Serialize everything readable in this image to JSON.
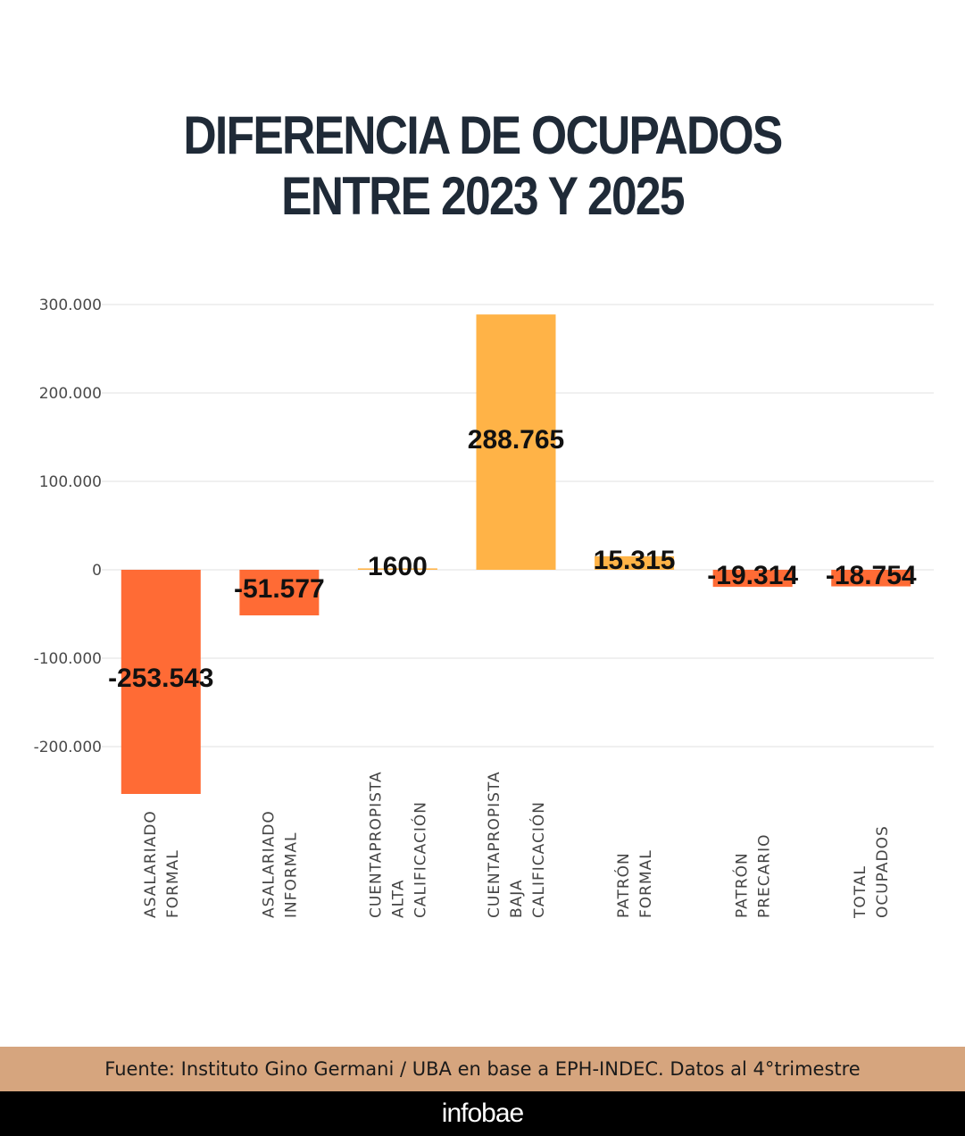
{
  "title_lines": [
    "DIFERENCIA DE OCUPADOS",
    "ENTRE 2023 Y 2025"
  ],
  "source": "Fuente: Instituto Gino Germani / UBA en base a EPH-INDEC. Datos al 4°trimestre",
  "brand": "infobae",
  "colors": {
    "negative": "#ff6b35",
    "positive": "#ffb347",
    "grid": "#e6e6e6",
    "title": "#1f2a37",
    "source_bg": "#d6a57e"
  },
  "chart_data": {
    "type": "bar",
    "title": "DIFERENCIA DE OCUPADOS ENTRE 2023 Y 2025",
    "categories": [
      [
        "ASALARIADO",
        "FORMAL"
      ],
      [
        "ASALARIADO",
        "INFORMAL"
      ],
      [
        "CUENTAPROPISTA",
        "ALTA",
        "CALIFICACIÓN"
      ],
      [
        "CUENTAPROPISTA",
        "BAJA",
        "CALIFICACIÓN"
      ],
      [
        "PATRÓN",
        "FORMAL"
      ],
      [
        "PATRÓN",
        "PRECARIO"
      ],
      [
        "TOTAL",
        "OCUPADOS"
      ]
    ],
    "values": [
      -253543,
      -51577,
      1600,
      288765,
      15315,
      -19314,
      -18754
    ],
    "value_labels": [
      "-253.543",
      "-51.577",
      "1600",
      "288.765",
      "15.315",
      "-19.314",
      "-18.754"
    ],
    "yticks": [
      300000,
      200000,
      100000,
      0,
      -100000,
      -200000
    ],
    "ytick_labels": [
      "300.000",
      "200.000",
      "100.000",
      "0",
      "-100.000",
      "-200.000"
    ],
    "ylim": [
      -260000,
      300000
    ],
    "grid": true,
    "xlabel": "",
    "ylabel": ""
  }
}
